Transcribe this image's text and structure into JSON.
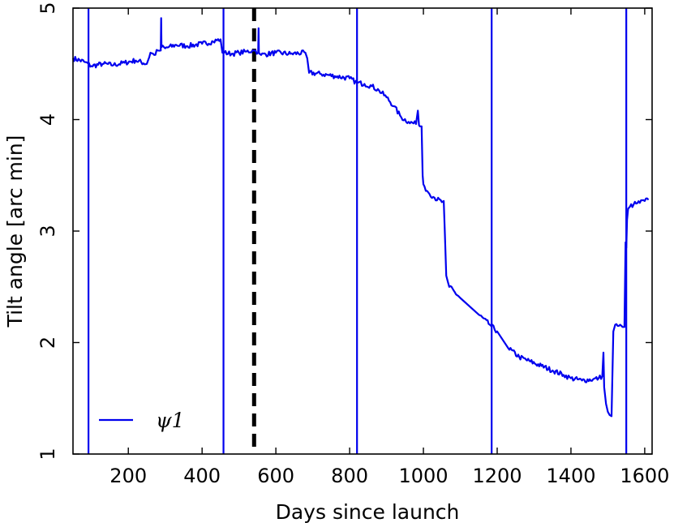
{
  "chart_data": {
    "type": "line",
    "xlabel": "Days since launch",
    "ylabel": "Tilt angle [arc min]",
    "xlim": [
      50,
      1620
    ],
    "ylim": [
      1,
      5
    ],
    "xticks": [
      200,
      400,
      600,
      800,
      1000,
      1200,
      1400,
      1600
    ],
    "yticks": [
      1,
      2,
      3,
      4,
      5
    ],
    "grid": false,
    "legend_position": "bottom-left",
    "series": [
      {
        "name": "ψ1",
        "color": "#0000ee",
        "x": [
          50,
          80,
          100,
          130,
          160,
          190,
          220,
          250,
          260,
          270,
          280,
          288,
          289,
          290,
          300,
          330,
          360,
          400,
          430,
          450,
          455,
          460,
          480,
          500,
          520,
          540,
          545,
          552,
          553,
          554,
          556,
          560,
          600,
          640,
          680,
          685,
          690,
          720,
          760,
          800,
          820,
          840,
          860,
          880,
          900,
          920,
          940,
          960,
          980,
          985,
          988,
          990,
          995,
          998,
          1000,
          1003,
          1010,
          1030,
          1050,
          1055,
          1058,
          1062,
          1070,
          1100,
          1150,
          1180,
          1200,
          1230,
          1260,
          1290,
          1320,
          1350,
          1380,
          1400,
          1430,
          1460,
          1475,
          1485,
          1488,
          1490,
          1495,
          1500,
          1505,
          1510,
          1515,
          1520,
          1530,
          1540,
          1545,
          1548,
          1550,
          1552,
          1555,
          1560,
          1570,
          1580,
          1600,
          1610
        ],
        "y": [
          4.55,
          4.52,
          4.48,
          4.5,
          4.49,
          4.51,
          4.53,
          4.5,
          4.6,
          4.58,
          4.62,
          4.62,
          4.91,
          4.65,
          4.64,
          4.67,
          4.66,
          4.68,
          4.7,
          4.72,
          4.6,
          4.6,
          4.59,
          4.6,
          4.61,
          4.62,
          4.62,
          4.6,
          4.82,
          4.6,
          4.59,
          4.58,
          4.6,
          4.59,
          4.6,
          4.55,
          4.42,
          4.41,
          4.39,
          4.37,
          4.33,
          4.32,
          4.3,
          4.26,
          4.2,
          4.12,
          4.02,
          3.98,
          3.96,
          4.08,
          3.95,
          3.94,
          3.94,
          3.5,
          3.42,
          3.4,
          3.36,
          3.3,
          3.26,
          3.27,
          3.0,
          2.6,
          2.5,
          2.4,
          2.25,
          2.16,
          2.1,
          1.95,
          1.87,
          1.83,
          1.79,
          1.75,
          1.71,
          1.68,
          1.66,
          1.67,
          1.68,
          1.7,
          1.91,
          1.6,
          1.45,
          1.38,
          1.35,
          1.34,
          2.1,
          2.16,
          2.15,
          2.14,
          2.14,
          2.9,
          2.85,
          3.1,
          3.2,
          3.22,
          3.24,
          3.25,
          3.27,
          3.28
        ]
      }
    ],
    "vertical_lines": [
      {
        "x": 92,
        "color": "#0000ee",
        "style": "solid"
      },
      {
        "x": 458,
        "color": "#0000ee",
        "style": "solid"
      },
      {
        "x": 541,
        "color": "#000000",
        "style": "dashed"
      },
      {
        "x": 820,
        "color": "#0000ee",
        "style": "solid"
      },
      {
        "x": 1185,
        "color": "#0000ee",
        "style": "solid"
      },
      {
        "x": 1550,
        "color": "#0000ee",
        "style": "solid"
      }
    ]
  }
}
